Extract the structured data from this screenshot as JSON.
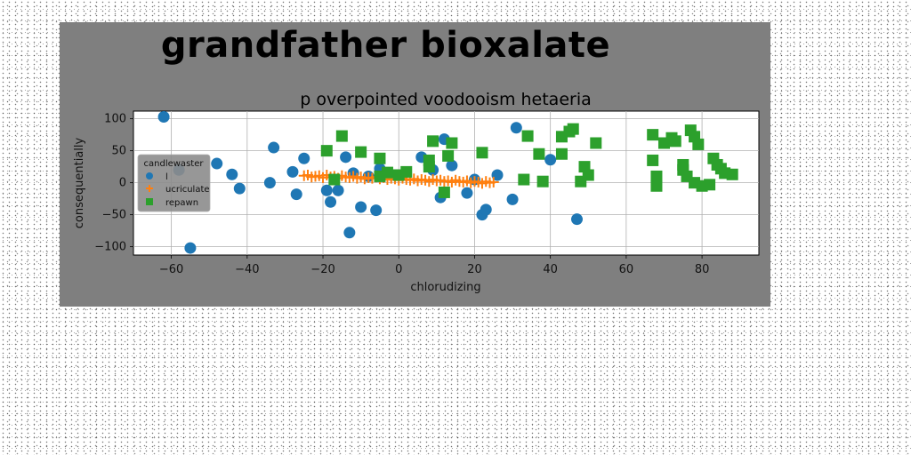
{
  "figure_title": "grandfather bioxalate",
  "chart_data": {
    "type": "scatter",
    "title": "p overpointed voodooism hetaeria",
    "xlabel": "chlorudizing",
    "ylabel": "consequentially",
    "xlim": [
      -70,
      95
    ],
    "ylim": [
      -113,
      112
    ],
    "xticks": [
      -60,
      -40,
      -20,
      0,
      20,
      40,
      60,
      80
    ],
    "yticks": [
      -100,
      -50,
      0,
      50,
      100
    ],
    "xtick_labels": [
      "−60",
      "−40",
      "−20",
      "0",
      "20",
      "40",
      "60",
      "80"
    ],
    "ytick_labels": [
      "−100",
      "−50",
      "0",
      "50",
      "100"
    ],
    "grid": true,
    "legend": {
      "title": "candlewaster",
      "placement": "center-left"
    },
    "series": [
      {
        "name": "l",
        "marker": "circle",
        "color": "#1f77b4",
        "points": [
          [
            -62,
            103
          ],
          [
            -58,
            20
          ],
          [
            -55,
            -102
          ],
          [
            -48,
            30
          ],
          [
            -44,
            13
          ],
          [
            -42,
            -9
          ],
          [
            -34,
            0
          ],
          [
            -33,
            55
          ],
          [
            -28,
            17
          ],
          [
            -27,
            -18
          ],
          [
            -25,
            38
          ],
          [
            -19,
            -12
          ],
          [
            -18,
            -30
          ],
          [
            -16,
            -12
          ],
          [
            -14,
            40
          ],
          [
            -13,
            -78
          ],
          [
            -12,
            15
          ],
          [
            -10,
            -38
          ],
          [
            -8,
            10
          ],
          [
            -6,
            -43
          ],
          [
            -5,
            22
          ],
          [
            -2,
            12
          ],
          [
            6,
            40
          ],
          [
            9,
            20
          ],
          [
            11,
            -23
          ],
          [
            12,
            68
          ],
          [
            14,
            27
          ],
          [
            18,
            -16
          ],
          [
            20,
            5
          ],
          [
            22,
            -50
          ],
          [
            23,
            -42
          ],
          [
            26,
            12
          ],
          [
            30,
            -26
          ],
          [
            31,
            86
          ],
          [
            40,
            36
          ],
          [
            47,
            -57
          ]
        ]
      },
      {
        "name": "ucriculate",
        "marker": "plus",
        "color": "#ff7f0e",
        "points": [
          [
            -25,
            11
          ],
          [
            -24,
            12
          ],
          [
            -23,
            9
          ],
          [
            -22,
            10
          ],
          [
            -21,
            11
          ],
          [
            -20,
            8
          ],
          [
            -19,
            12
          ],
          [
            -18,
            9
          ],
          [
            -17,
            10
          ],
          [
            -16,
            7
          ],
          [
            -15,
            11
          ],
          [
            -14,
            9
          ],
          [
            -13,
            8
          ],
          [
            -12,
            10
          ],
          [
            -11,
            7
          ],
          [
            -10,
            9
          ],
          [
            -9,
            6
          ],
          [
            -8,
            8
          ],
          [
            -7,
            7
          ],
          [
            -6,
            9
          ],
          [
            -5,
            6
          ],
          [
            -4,
            8
          ],
          [
            -3,
            5
          ],
          [
            -2,
            7
          ],
          [
            -1,
            6
          ],
          [
            0,
            4
          ],
          [
            1,
            7
          ],
          [
            2,
            5
          ],
          [
            3,
            4
          ],
          [
            4,
            6
          ],
          [
            5,
            3
          ],
          [
            6,
            5
          ],
          [
            7,
            4
          ],
          [
            8,
            2
          ],
          [
            9,
            5
          ],
          [
            10,
            3
          ],
          [
            11,
            4
          ],
          [
            12,
            2
          ],
          [
            13,
            3
          ],
          [
            14,
            1
          ],
          [
            15,
            4
          ],
          [
            16,
            2
          ],
          [
            17,
            1
          ],
          [
            18,
            3
          ],
          [
            19,
            0
          ],
          [
            20,
            2
          ],
          [
            21,
            1
          ],
          [
            22,
            -1
          ],
          [
            23,
            2
          ],
          [
            24,
            0
          ],
          [
            25,
            1
          ]
        ]
      },
      {
        "name": "repawn",
        "marker": "square",
        "color": "#2ca02c",
        "points": [
          [
            -19,
            50
          ],
          [
            -17,
            5
          ],
          [
            -15,
            73
          ],
          [
            -10,
            48
          ],
          [
            -5,
            38
          ],
          [
            -5,
            10
          ],
          [
            -3,
            16
          ],
          [
            0,
            12
          ],
          [
            2,
            17
          ],
          [
            8,
            25
          ],
          [
            8,
            35
          ],
          [
            9,
            65
          ],
          [
            12,
            -15
          ],
          [
            13,
            42
          ],
          [
            14,
            62
          ],
          [
            22,
            47
          ],
          [
            33,
            5
          ],
          [
            34,
            73
          ],
          [
            37,
            45
          ],
          [
            38,
            2
          ],
          [
            43,
            72
          ],
          [
            43,
            45
          ],
          [
            45,
            80
          ],
          [
            46,
            84
          ],
          [
            48,
            2
          ],
          [
            49,
            25
          ],
          [
            50,
            12
          ],
          [
            52,
            62
          ],
          [
            67,
            75
          ],
          [
            67,
            35
          ],
          [
            68,
            10
          ],
          [
            68,
            -5
          ],
          [
            70,
            62
          ],
          [
            72,
            70
          ],
          [
            73,
            65
          ],
          [
            75,
            28
          ],
          [
            75,
            20
          ],
          [
            76,
            10
          ],
          [
            77,
            82
          ],
          [
            78,
            72
          ],
          [
            78,
            0
          ],
          [
            79,
            60
          ],
          [
            80,
            -5
          ],
          [
            82,
            -3
          ],
          [
            83,
            38
          ],
          [
            84,
            28
          ],
          [
            85,
            22
          ],
          [
            86,
            15
          ],
          [
            88,
            13
          ]
        ]
      }
    ]
  }
}
